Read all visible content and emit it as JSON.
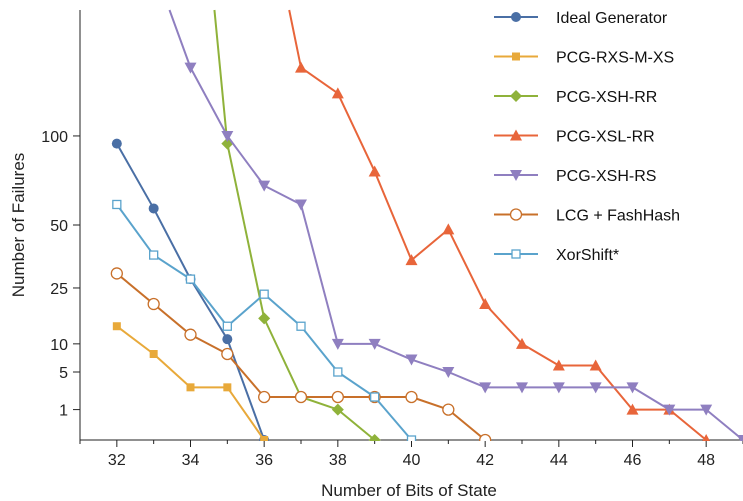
{
  "chart_data": {
    "type": "line",
    "title": "",
    "xlabel": "Number of Bits of State",
    "ylabel": "Number of Failures",
    "xlim": [
      31,
      49
    ],
    "y_scale": "sqrt",
    "ylim": [
      0,
      200
    ],
    "x_ticks": [
      32,
      34,
      36,
      38,
      40,
      42,
      44,
      46,
      48
    ],
    "y_ticks": [
      1,
      5,
      10,
      25,
      50,
      100
    ],
    "grid": false,
    "legend_position": "top-right",
    "series": [
      {
        "name": "Ideal Generator",
        "color": "#4a6fa5",
        "marker": "circle-filled",
        "x": [
          32,
          33,
          34,
          35,
          36
        ],
        "y": [
          95,
          58,
          28,
          11,
          0
        ]
      },
      {
        "name": "PCG-RXS-M-XS",
        "color": "#e8a93a",
        "marker": "square-filled",
        "x": [
          32,
          33,
          34,
          35,
          36
        ],
        "y": [
          14,
          8,
          3,
          3,
          0
        ]
      },
      {
        "name": "PCG-XSH-RR",
        "color": "#8fb23a",
        "marker": "diamond-filled",
        "x": [
          34.65,
          35,
          36,
          37,
          38,
          39
        ],
        "y": [
          200,
          95,
          16,
          2,
          1,
          0
        ]
      },
      {
        "name": "PCG-XSL-RR",
        "color": "#e8653a",
        "marker": "triangle-up-filled",
        "x": [
          36.68,
          37,
          38,
          39,
          40,
          41,
          42,
          43,
          44,
          45,
          46,
          47,
          48
        ],
        "y": [
          200,
          150,
          130,
          78,
          35,
          48,
          20,
          10,
          6,
          6,
          1,
          1,
          0
        ]
      },
      {
        "name": "PCG-XSH-RS",
        "color": "#8f7fc0",
        "marker": "triangle-down-filled",
        "x": [
          33.43,
          34,
          35,
          36,
          37,
          38,
          39,
          40,
          41,
          42,
          43,
          44,
          45,
          46,
          47,
          48,
          49
        ],
        "y": [
          200,
          150,
          100,
          70,
          60,
          10,
          10,
          7,
          5,
          3,
          3,
          3,
          3,
          3,
          1,
          1,
          0
        ]
      },
      {
        "name": "LCG + FashHash",
        "color": "#c8702a",
        "marker": "circle-open",
        "x": [
          32,
          33,
          34,
          35,
          36,
          37,
          38,
          39,
          40,
          41,
          42
        ],
        "y": [
          30,
          20,
          12,
          8,
          2,
          2,
          2,
          2,
          2,
          1,
          0
        ]
      },
      {
        "name": "XorShift*",
        "color": "#5aa3cc",
        "marker": "square-open",
        "x": [
          32,
          33,
          34,
          35,
          36,
          37,
          38,
          39,
          40
        ],
        "y": [
          60,
          37,
          28,
          14,
          23,
          14,
          5,
          2,
          0
        ]
      }
    ]
  }
}
